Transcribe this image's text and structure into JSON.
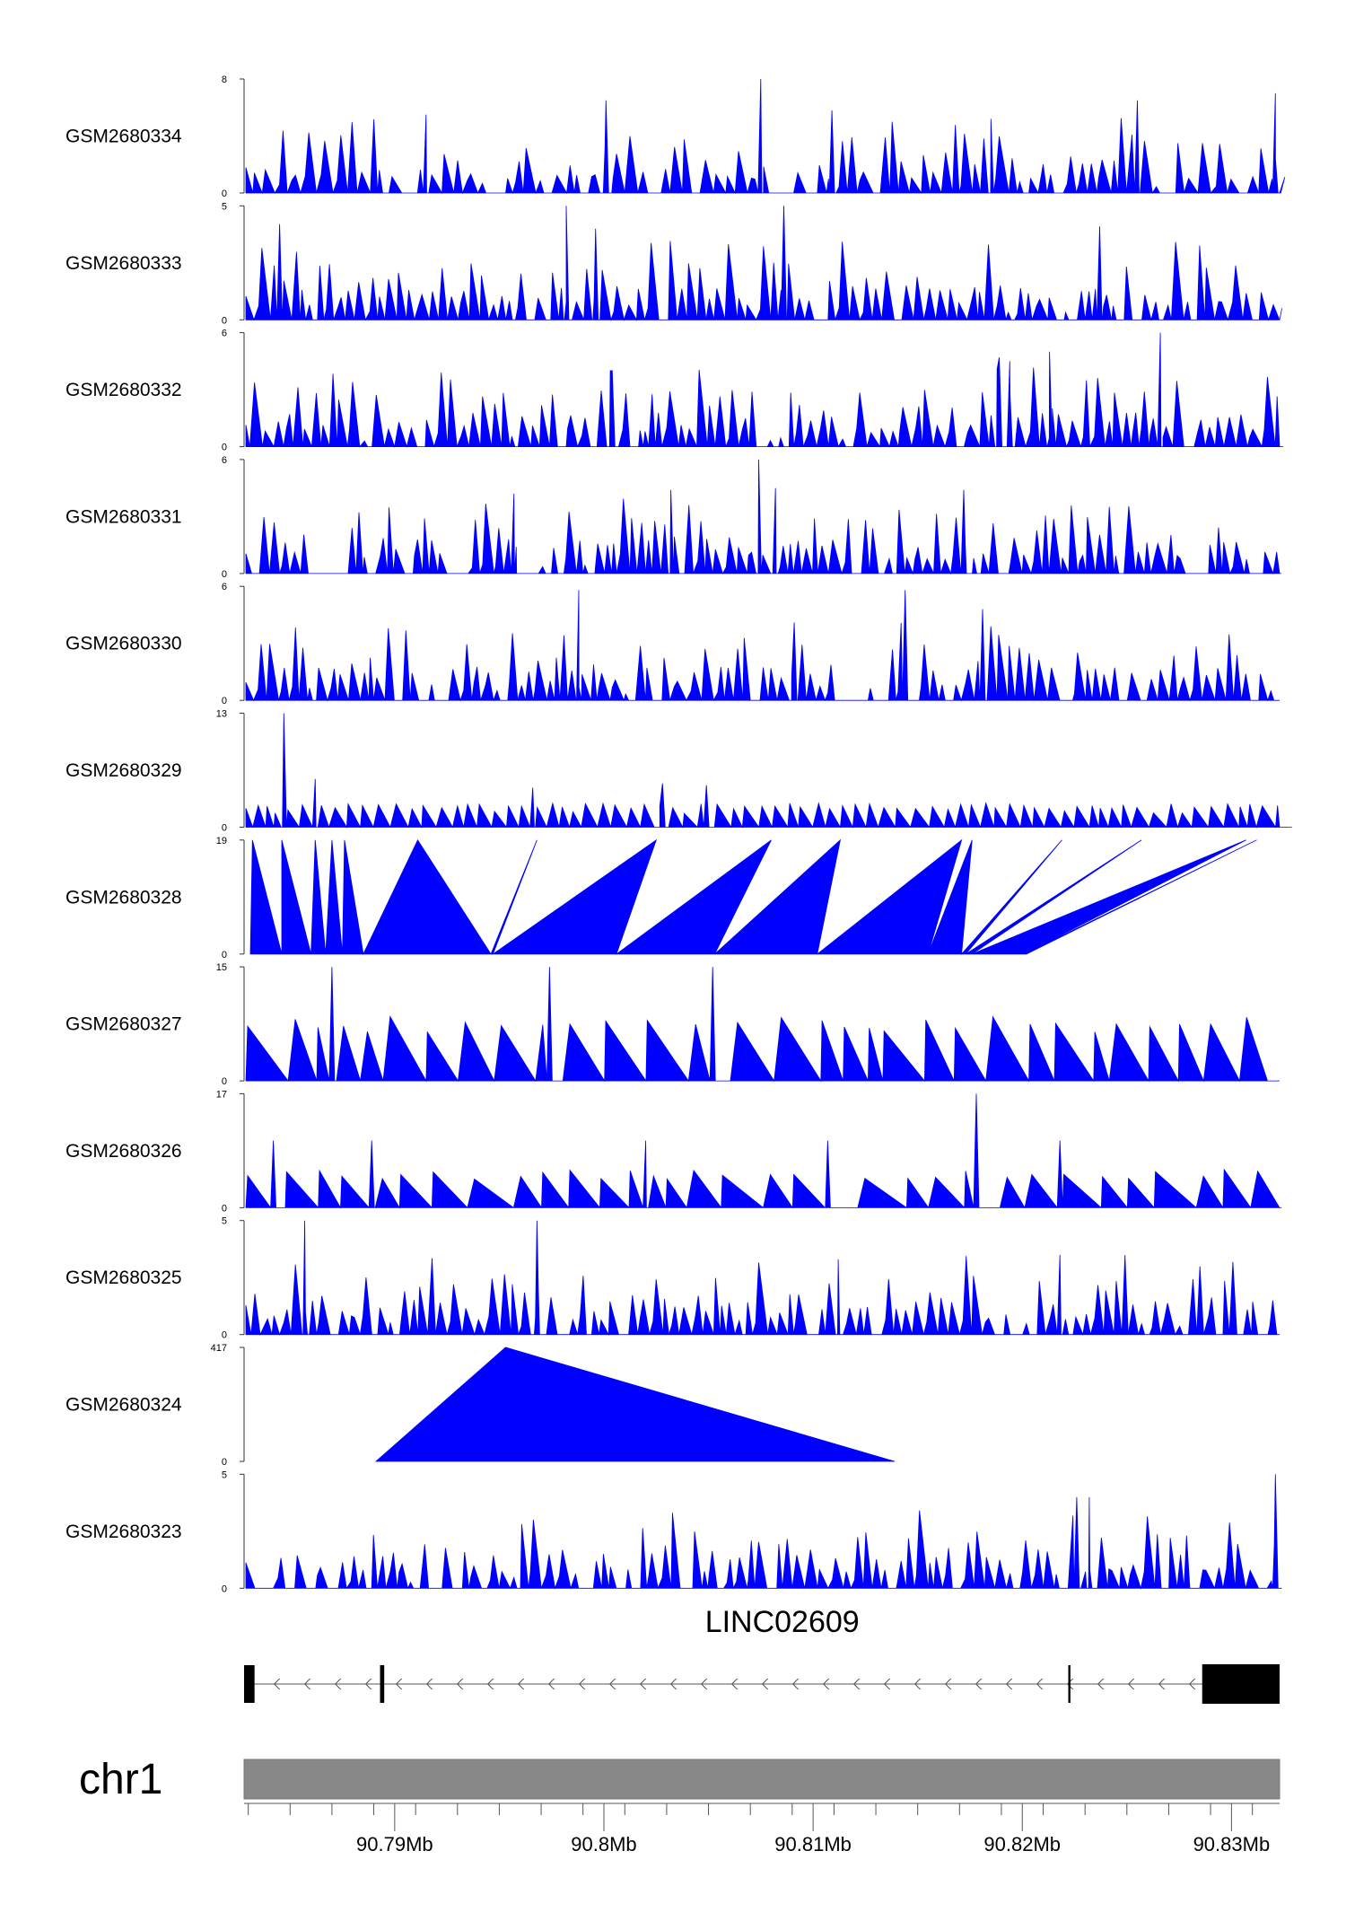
{
  "chart_data": {
    "type": "area",
    "title": "",
    "xlabel": "",
    "ylabel": "",
    "x_range_mb": [
      90.7828,
      90.8323
    ],
    "x_ticks": [
      {
        "value": 90.79,
        "label": "90.79Mb"
      },
      {
        "value": 90.8,
        "label": "90.8Mb"
      },
      {
        "value": 90.81,
        "label": "90.81Mb"
      },
      {
        "value": 90.82,
        "label": "90.82Mb"
      },
      {
        "value": 90.83,
        "label": "90.83Mb"
      }
    ],
    "series": [
      {
        "name": "GSM2680334",
        "ymax": 8,
        "ymin_label": "0",
        "ymax_label": "8",
        "mode": "noise",
        "seed": 334,
        "density": 150,
        "spikes": [
          [
            90.8075,
            8
          ],
          [
            90.8321,
            7
          ],
          [
            90.8001,
            6.5
          ],
          [
            90.8109,
            5.8
          ],
          [
            90.8255,
            6.5
          ],
          [
            90.7915,
            5.5
          ],
          [
            90.8185,
            5.2
          ]
        ]
      },
      {
        "name": "GSM2680333",
        "ymax": 5,
        "ymin_label": "0",
        "ymax_label": "5",
        "mode": "noise",
        "seed": 333,
        "density": 170,
        "spikes": [
          [
            90.7982,
            5
          ],
          [
            90.8086,
            5
          ],
          [
            90.7845,
            4.2
          ],
          [
            90.8237,
            4.1
          ],
          [
            90.7996,
            4.0
          ]
        ]
      },
      {
        "name": "GSM2680332",
        "ymax": 6,
        "ymin_label": "0",
        "ymax_label": "6",
        "mode": "noise",
        "seed": 332,
        "density": 170,
        "spikes": [
          [
            90.8266,
            6
          ],
          [
            90.8213,
            5
          ],
          [
            90.8189,
            4.7
          ],
          [
            90.8194,
            4.5
          ],
          [
            90.8004,
            4.0
          ]
        ]
      },
      {
        "name": "GSM2680331",
        "ymax": 6,
        "ymin_label": "0",
        "ymax_label": "6",
        "mode": "noise",
        "seed": 331,
        "density": 170,
        "spikes": [
          [
            90.8074,
            6
          ],
          [
            90.8082,
            4.5
          ],
          [
            90.7957,
            4.2
          ],
          [
            90.8032,
            4.4
          ],
          [
            90.8172,
            4.4
          ]
        ]
      },
      {
        "name": "GSM2680330",
        "ymax": 6,
        "ymin_label": "0",
        "ymax_label": "6",
        "mode": "noise",
        "seed": 330,
        "density": 170,
        "spikes": [
          [
            90.7988,
            5.8
          ],
          [
            90.8144,
            5.8
          ],
          [
            90.8181,
            4.8
          ],
          [
            90.8091,
            4.1
          ]
        ]
      },
      {
        "name": "GSM2680329",
        "ymax": 13,
        "ymin_label": "0",
        "ymax_label": "13",
        "mode": "sparse",
        "seed": 329,
        "density": 100,
        "spikes": [
          [
            90.7847,
            13
          ],
          [
            90.7862,
            5.5
          ],
          [
            90.7966,
            4.5
          ],
          [
            90.8028,
            5
          ],
          [
            90.8049,
            4.8
          ]
        ]
      },
      {
        "name": "GSM2680328",
        "ymax": 19,
        "ymin_label": "0",
        "ymax_label": "19",
        "mode": "triangles",
        "peaks": [
          [
            90.7832,
            19
          ],
          [
            90.7846,
            19
          ],
          [
            90.7862,
            19
          ],
          [
            90.787,
            19
          ],
          [
            90.7876,
            19
          ],
          [
            90.7911,
            19
          ],
          [
            90.7968,
            19
          ],
          [
            90.8025,
            19
          ],
          [
            90.808,
            19
          ],
          [
            90.8113,
            19
          ],
          [
            90.8171,
            19
          ],
          [
            90.8176,
            19
          ],
          [
            90.8219,
            19
          ],
          [
            90.8257,
            19
          ],
          [
            90.8307,
            19
          ],
          [
            90.8312,
            19
          ]
        ],
        "zeros": [
          90.7831,
          90.7846,
          90.786,
          90.7867,
          90.7875,
          90.7885,
          90.7946,
          90.7947,
          90.8006,
          90.8053,
          90.8102,
          90.8155,
          90.8171,
          90.8173,
          90.8176,
          90.8201,
          90.8202,
          90.8244,
          90.8282,
          90.8283,
          90.8312,
          90.8317
        ]
      },
      {
        "name": "GSM2680327",
        "ymax": 15,
        "ymin_label": "0",
        "ymax_label": "15",
        "mode": "saw",
        "seed": 327,
        "spikes": [
          [
            90.787,
            15
          ],
          [
            90.7974,
            15
          ],
          [
            90.8052,
            15
          ]
        ],
        "base_height": 7.5
      },
      {
        "name": "GSM2680326",
        "ymax": 17,
        "ymin_label": "0",
        "ymax_label": "17",
        "mode": "saw",
        "seed": 326,
        "spikes": [
          [
            90.8178,
            17
          ],
          [
            90.7842,
            10
          ],
          [
            90.7889,
            10
          ],
          [
            90.802,
            10
          ],
          [
            90.8107,
            10
          ],
          [
            90.8218,
            10
          ]
        ],
        "base_height": 5
      },
      {
        "name": "GSM2680325",
        "ymax": 5,
        "ymin_label": "0",
        "ymax_label": "5",
        "mode": "noise",
        "seed": 325,
        "density": 170,
        "spikes": [
          [
            90.7857,
            5
          ],
          [
            90.7968,
            5
          ],
          [
            90.8218,
            3.5
          ],
          [
            90.8112,
            3.3
          ]
        ]
      },
      {
        "name": "GSM2680324",
        "ymax": 417,
        "ymin_label": "0",
        "ymax_label": "417",
        "mode": "single",
        "start": 90.7891,
        "peak": 90.7953,
        "end": 90.8139,
        "peak_value": 417
      },
      {
        "name": "GSM2680323",
        "ymax": 5,
        "ymin_label": "0",
        "ymax_label": "5",
        "mode": "noise",
        "seed": 323,
        "density": 170,
        "spikes": [
          [
            90.8321,
            5
          ],
          [
            90.8232,
            4
          ],
          [
            90.8226,
            4
          ]
        ]
      }
    ],
    "gene": {
      "name": "LINC02609",
      "strand": "-",
      "exons": [
        [
          90.7828,
          90.7833
        ],
        [
          90.7893,
          90.7895
        ],
        [
          90.8222,
          90.8223
        ],
        [
          90.8286,
          90.8323
        ]
      ],
      "intron_range": [
        90.7833,
        90.8286
      ]
    },
    "chromosome": "chr1"
  }
}
